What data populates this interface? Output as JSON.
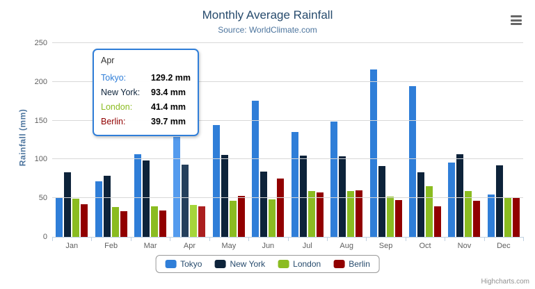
{
  "header": {
    "title": "Monthly Average Rainfall",
    "subtitle": "Source: WorldClimate.com"
  },
  "chart_data": {
    "type": "bar",
    "title": "Monthly Average Rainfall",
    "subtitle": "Source: WorldClimate.com",
    "categories": [
      "Jan",
      "Feb",
      "Mar",
      "Apr",
      "May",
      "Jun",
      "Jul",
      "Aug",
      "Sep",
      "Oct",
      "Nov",
      "Dec"
    ],
    "series": [
      {
        "name": "Tokyo",
        "color": "#2f7ed8",
        "hover_color": "#549bee",
        "values": [
          49.9,
          71.5,
          106.4,
          129.2,
          144.0,
          176.0,
          135.6,
          148.5,
          216.4,
          194.1,
          95.6,
          54.4
        ]
      },
      {
        "name": "New York",
        "color": "#0d233a",
        "hover_color": "#25405c",
        "values": [
          83.6,
          78.8,
          98.5,
          93.4,
          106.0,
          84.5,
          105.0,
          104.3,
          91.2,
          83.5,
          106.6,
          92.3
        ]
      },
      {
        "name": "London",
        "color": "#8bbc21",
        "hover_color": "#a5d63b",
        "values": [
          48.9,
          38.8,
          39.3,
          41.4,
          47.0,
          48.3,
          59.0,
          59.6,
          52.4,
          65.2,
          59.3,
          51.2
        ]
      },
      {
        "name": "Berlin",
        "color": "#910000",
        "hover_color": "#ab1f1f",
        "values": [
          42.4,
          33.2,
          34.5,
          39.7,
          52.6,
          75.5,
          57.4,
          60.4,
          47.6,
          39.1,
          46.8,
          51.1
        ]
      }
    ],
    "ylabel": "Rainfall (mm)",
    "xlabel": "",
    "ylim": [
      0,
      250
    ],
    "yticks": [
      0,
      50,
      100,
      150,
      200,
      250
    ],
    "grid": true,
    "legend_position": "bottom",
    "hovered_category": "Apr"
  },
  "tooltip": {
    "header": "Apr",
    "rows": [
      {
        "label": "Tokyo:",
        "value": "129.2 mm",
        "color": "#2f7ed8"
      },
      {
        "label": "New York:",
        "value": "93.4 mm",
        "color": "#0d233a"
      },
      {
        "label": "London:",
        "value": "41.4 mm",
        "color": "#8bbc21"
      },
      {
        "label": "Berlin:",
        "value": "39.7 mm",
        "color": "#910000"
      }
    ],
    "border_color": "#2f7ed8"
  },
  "credits": {
    "text": "Highcharts.com"
  }
}
